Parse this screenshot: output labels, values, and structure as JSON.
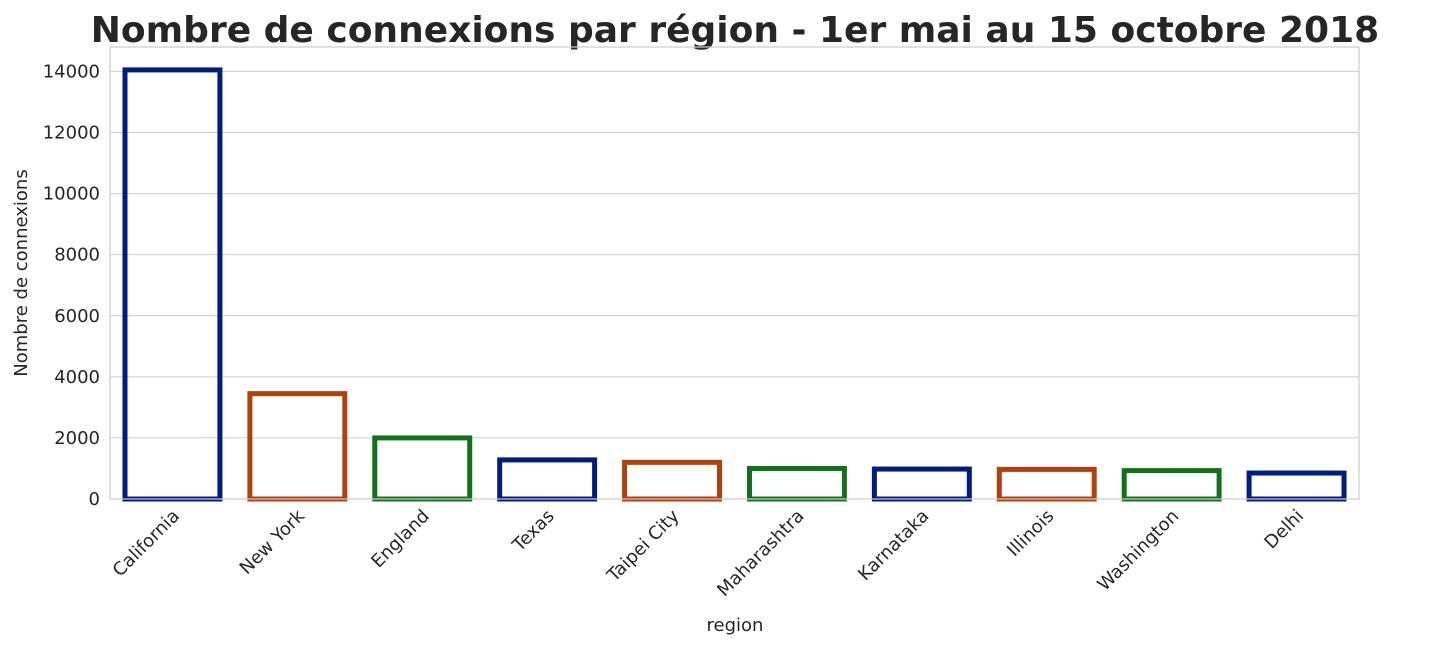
{
  "chart_data": {
    "type": "bar",
    "title": "Nombre de connexions par région - 1er mai au 15 octobre 2018",
    "xlabel": "region",
    "ylabel": "Nombre de connexions",
    "categories": [
      "California",
      "New York",
      "England",
      "Texas",
      "Taipei City",
      "Maharashtra",
      "Karnataka",
      "Illinois",
      "Washington",
      "Delhi"
    ],
    "values": [
      14050,
      3450,
      2000,
      1280,
      1200,
      1000,
      980,
      970,
      930,
      850
    ],
    "ylim": [
      0,
      14800
    ],
    "yticks": [
      0,
      2000,
      4000,
      6000,
      8000,
      10000,
      12000,
      14000
    ],
    "colors": [
      "#001c7f",
      "#b1400d",
      "#12711c",
      "#001c7f",
      "#b1400d",
      "#12711c",
      "#001c7f",
      "#b1400d",
      "#12711c",
      "#001c7f"
    ],
    "grid": true,
    "legend": "none"
  }
}
